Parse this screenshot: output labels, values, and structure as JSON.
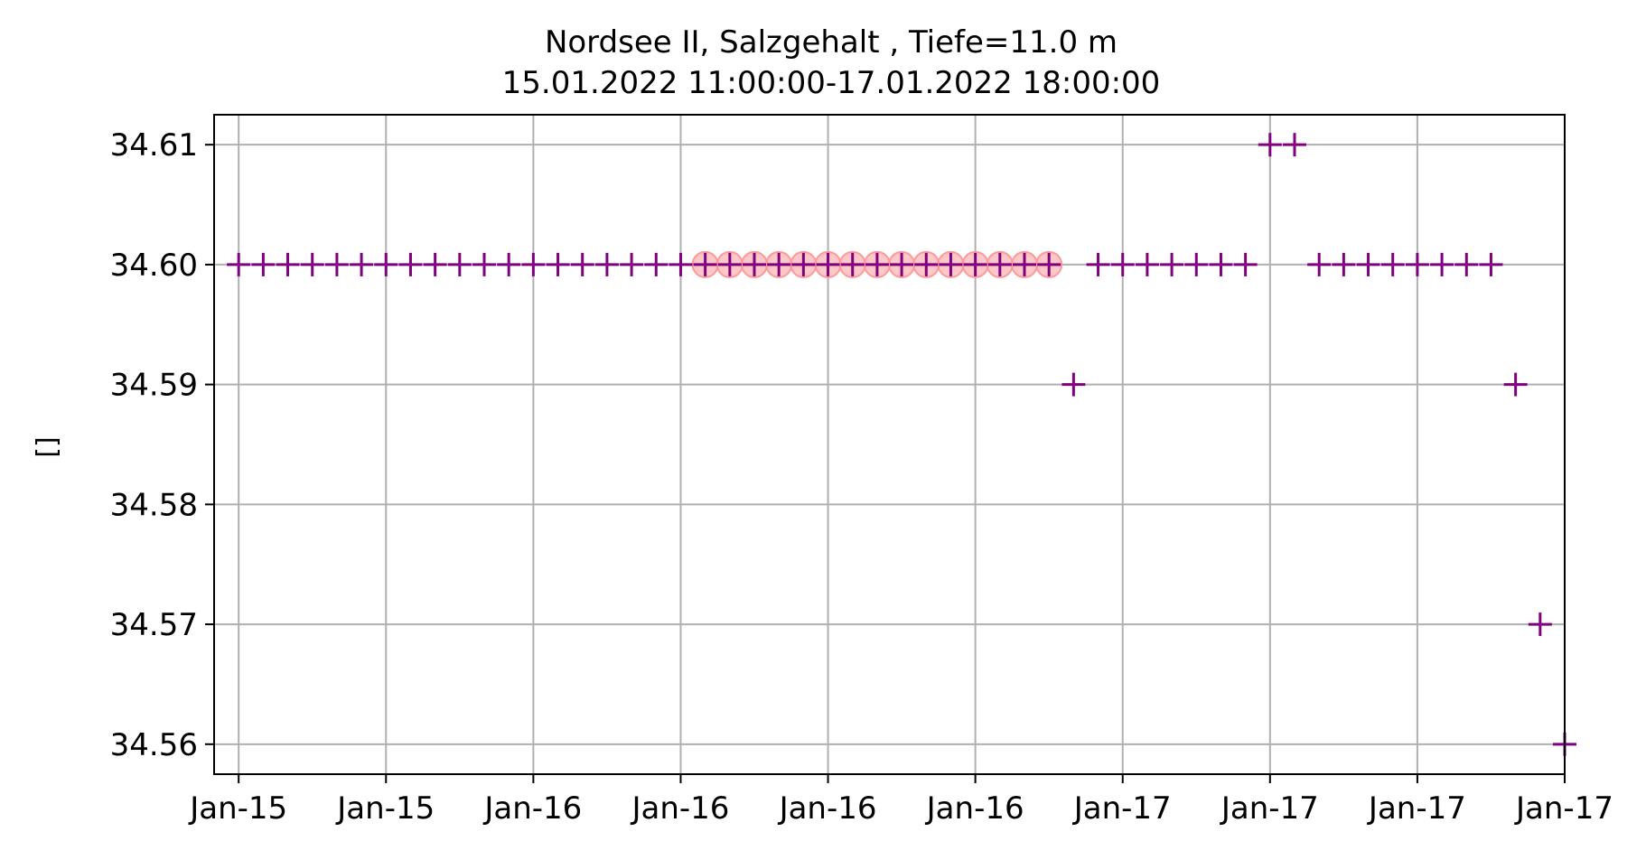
{
  "chart_data": {
    "type": "scatter",
    "title": "Nordsee II, Salzgehalt , Tiefe=11.0 m",
    "subtitle": "15.01.2022 11:00:00-17.01.2022 18:00:00",
    "xlabel": "",
    "ylabel": "[]",
    "x_tick_labels": [
      "Jan-15",
      "Jan-15",
      "Jan-16",
      "Jan-16",
      "Jan-16",
      "Jan-16",
      "Jan-17",
      "Jan-17",
      "Jan-17",
      "Jan-17"
    ],
    "x_tick_hours": [
      0,
      6,
      12,
      18,
      24,
      30,
      36,
      42,
      48,
      54
    ],
    "xlim_hours": [
      -1,
      54
    ],
    "y_ticks": [
      34.56,
      34.57,
      34.58,
      34.59,
      34.6,
      34.61
    ],
    "y_tick_labels": [
      "34.56",
      "34.57",
      "34.58",
      "34.59",
      "34.60",
      "34.61"
    ],
    "ylim": [
      34.5575,
      34.6125
    ],
    "grid": true,
    "series": [
      {
        "marker": "plus",
        "color": "#800080",
        "x_hours": [
          0,
          1,
          2,
          3,
          4,
          5,
          6,
          7,
          8,
          9,
          10,
          11,
          12,
          13,
          14,
          15,
          16,
          17,
          18,
          19,
          20,
          21,
          22,
          23,
          24,
          25,
          26,
          27,
          28,
          29,
          30,
          31,
          32,
          33,
          34,
          35,
          36,
          37,
          38,
          39,
          40,
          41,
          42,
          43,
          44,
          45,
          46,
          47,
          48,
          49,
          50,
          51,
          52,
          53,
          54
        ],
        "values": [
          34.6,
          34.6,
          34.6,
          34.6,
          34.6,
          34.6,
          34.6,
          34.6,
          34.6,
          34.6,
          34.6,
          34.6,
          34.6,
          34.6,
          34.6,
          34.6,
          34.6,
          34.6,
          34.6,
          34.6,
          34.6,
          34.6,
          34.6,
          34.6,
          34.6,
          34.6,
          34.6,
          34.6,
          34.6,
          34.6,
          34.6,
          34.6,
          34.6,
          34.6,
          34.59,
          34.6,
          34.6,
          34.6,
          34.6,
          34.6,
          34.6,
          34.6,
          34.61,
          34.61,
          34.6,
          34.6,
          34.6,
          34.6,
          34.6,
          34.6,
          34.6,
          34.6,
          34.59,
          34.57,
          34.56
        ]
      },
      {
        "marker": "circle",
        "color": "#ff9999",
        "x_hours": [
          19,
          20,
          21,
          22,
          23,
          24,
          25,
          26,
          27,
          28,
          29,
          30,
          31,
          32,
          33
        ],
        "values": [
          34.6,
          34.6,
          34.6,
          34.6,
          34.6,
          34.6,
          34.6,
          34.6,
          34.6,
          34.6,
          34.6,
          34.6,
          34.6,
          34.6,
          34.6
        ]
      }
    ]
  }
}
